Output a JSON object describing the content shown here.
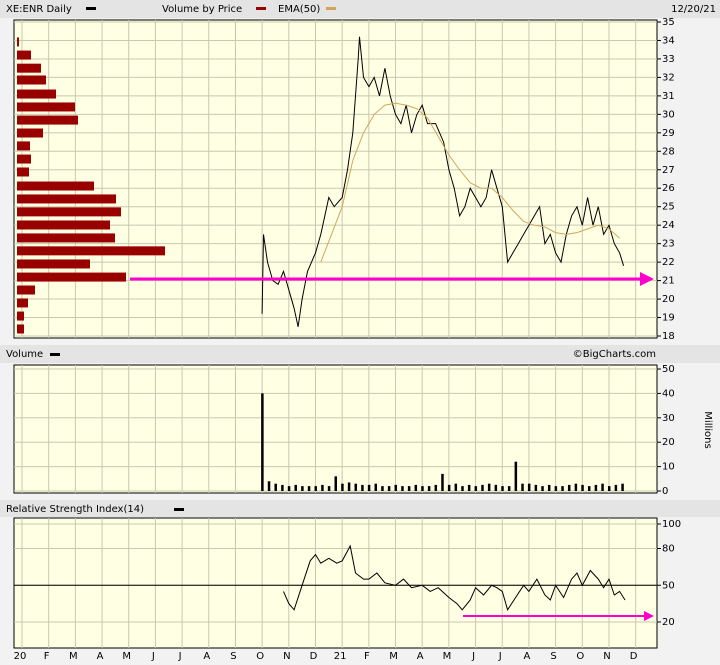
{
  "chart_data": [
    {
      "type": "line",
      "title": "XE:ENR Daily",
      "date": "12/20/21",
      "ylim": [
        18,
        35
      ],
      "yticks": [
        18,
        19,
        20,
        21,
        22,
        23,
        24,
        25,
        26,
        27,
        28,
        29,
        30,
        31,
        32,
        33,
        34,
        35
      ],
      "grid": true,
      "volume_by_price": {
        "name": "Volume by Price",
        "color": "#990000",
        "levels": [
          33.92,
          33.21,
          32.5,
          31.86,
          31.1,
          30.4,
          29.69,
          28.99,
          28.29,
          27.58,
          26.88,
          26.12,
          25.42,
          24.72,
          24.01,
          23.31,
          22.61,
          21.9,
          21.19,
          20.49,
          19.79,
          19.08,
          18.38
        ],
        "values": [
          2,
          14,
          24,
          29,
          39,
          58,
          61,
          26,
          13,
          14,
          12,
          77,
          99,
          104,
          93,
          98,
          148,
          73,
          109,
          18,
          11,
          7,
          7
        ]
      },
      "series": [
        {
          "name": "XE:ENR Daily",
          "color": "#000000",
          "x": [
            9.0,
            9.05,
            9.2,
            9.4,
            9.6,
            9.8,
            10.0,
            10.2,
            10.35,
            10.5,
            10.7,
            11.0,
            11.2,
            11.5,
            11.7,
            12.0,
            12.2,
            12.4,
            12.5,
            12.6,
            12.65,
            12.8,
            13.0,
            13.2,
            13.4,
            13.6,
            13.8,
            14.0,
            14.2,
            14.4,
            14.6,
            14.8,
            15.0,
            15.2,
            15.5,
            15.8,
            16.0,
            16.2,
            16.4,
            16.6,
            16.8,
            17.0,
            17.2,
            17.4,
            17.6,
            17.8,
            18.0,
            18.2,
            18.4,
            18.6,
            18.8,
            19.0,
            19.2,
            19.4,
            19.6,
            19.8,
            20.0,
            20.2,
            20.4,
            20.6,
            20.8,
            21.0,
            21.2,
            21.4,
            21.6,
            21.8,
            22.0,
            22.2,
            22.4,
            22.55
          ],
          "values": [
            19.2,
            23.5,
            22,
            21,
            20.8,
            21.5,
            20.5,
            19.5,
            18.5,
            20,
            21.5,
            22.5,
            23.5,
            25.5,
            25,
            25.5,
            27,
            29,
            31,
            33,
            34.2,
            32,
            31.5,
            32,
            31,
            32.5,
            31,
            30,
            29.5,
            30.5,
            29,
            30,
            30.5,
            29.5,
            29.5,
            28.5,
            27,
            26,
            24.5,
            25,
            26,
            25.5,
            25,
            25.5,
            27,
            26,
            25,
            22,
            22.5,
            23,
            23.5,
            24,
            24.5,
            25,
            23,
            23.5,
            22.5,
            22,
            23.5,
            24.5,
            25,
            24,
            25.5,
            24,
            25,
            23.5,
            24,
            23,
            22.5,
            21.8
          ]
        },
        {
          "name": "EMA(50)",
          "color": "#d2a65a",
          "x": [
            11.2,
            11.6,
            12.0,
            12.4,
            12.8,
            13.2,
            13.6,
            14.0,
            14.4,
            14.8,
            15.2,
            15.6,
            16.0,
            16.4,
            16.8,
            17.2,
            17.6,
            18.0,
            18.4,
            18.8,
            19.2,
            19.6,
            20.0,
            20.4,
            20.8,
            21.2,
            21.6,
            22.0,
            22.4
          ],
          "values": [
            22,
            23.5,
            25,
            27.5,
            29,
            30,
            30.5,
            30.6,
            30.5,
            30.3,
            29.8,
            28.8,
            27.8,
            27,
            26.3,
            26,
            26,
            25.5,
            24.8,
            24.2,
            24,
            23.9,
            23.6,
            23.5,
            23.6,
            23.8,
            24,
            23.8,
            23.3
          ]
        }
      ]
    },
    {
      "type": "bar",
      "title": "Volume",
      "source": "©BigCharts.com",
      "y_label": "Millions",
      "color": "#000000",
      "ylim": [
        0,
        50
      ],
      "yticks": [
        0,
        10,
        20,
        30,
        40,
        50
      ],
      "grid": true,
      "x": [
        9.0,
        9.25,
        9.5,
        9.75,
        10.0,
        10.25,
        10.5,
        10.75,
        11.0,
        11.25,
        11.5,
        11.75,
        12.0,
        12.25,
        12.5,
        12.75,
        13.0,
        13.25,
        13.5,
        13.75,
        14.0,
        14.25,
        14.5,
        14.75,
        15.0,
        15.25,
        15.5,
        15.75,
        16.0,
        16.25,
        16.5,
        16.75,
        17.0,
        17.25,
        17.5,
        17.75,
        18.0,
        18.25,
        18.5,
        18.75,
        19.0,
        19.25,
        19.5,
        19.75,
        20.0,
        20.25,
        20.5,
        20.75,
        21.0,
        21.25,
        21.5,
        21.75,
        22.0,
        22.25,
        22.5
      ],
      "values": [
        40,
        4,
        3,
        2.5,
        2,
        2.5,
        2,
        2,
        2,
        2.5,
        2,
        6,
        3,
        3.5,
        3,
        2.5,
        2.5,
        3,
        2,
        2,
        2.5,
        2,
        2,
        2.5,
        2,
        2,
        2.5,
        7,
        2.5,
        3,
        2,
        2.5,
        2,
        2.5,
        3,
        2.5,
        2,
        2,
        12,
        3,
        3,
        2.5,
        2,
        2.5,
        2,
        2,
        2.5,
        3,
        2.5,
        2,
        2.5,
        3,
        2,
        2.5,
        3
      ]
    },
    {
      "type": "line",
      "title": "Relative Strength Index(14)",
      "midline": 50,
      "ylim": [
        20,
        100
      ],
      "yticks": [
        20,
        50,
        80,
        100
      ],
      "grid": true,
      "xlim": [
        -0.3,
        23.8
      ],
      "xticks": [
        {
          "value": 0,
          "label": "20"
        },
        {
          "value": 1,
          "label": "F"
        },
        {
          "value": 2,
          "label": "M"
        },
        {
          "value": 3,
          "label": "A"
        },
        {
          "value": 4,
          "label": "M"
        },
        {
          "value": 5,
          "label": "J"
        },
        {
          "value": 6,
          "label": "J"
        },
        {
          "value": 7,
          "label": "A"
        },
        {
          "value": 8,
          "label": "S"
        },
        {
          "value": 9,
          "label": "O"
        },
        {
          "value": 10,
          "label": "N"
        },
        {
          "value": 11,
          "label": "D"
        },
        {
          "value": 12,
          "label": "21"
        },
        {
          "value": 13,
          "label": "F"
        },
        {
          "value": 14,
          "label": "M"
        },
        {
          "value": 15,
          "label": "A"
        },
        {
          "value": 16,
          "label": "M"
        },
        {
          "value": 17,
          "label": "J"
        },
        {
          "value": 18,
          "label": "J"
        },
        {
          "value": 19,
          "label": "A"
        },
        {
          "value": 20,
          "label": "S"
        },
        {
          "value": 21,
          "label": "O"
        },
        {
          "value": 22,
          "label": "N"
        },
        {
          "value": 23,
          "label": "D"
        }
      ],
      "series": [
        {
          "color": "#000000",
          "x": [
            9.8,
            10.0,
            10.2,
            10.5,
            10.8,
            11.0,
            11.2,
            11.5,
            11.8,
            12.0,
            12.2,
            12.3,
            12.5,
            12.8,
            13.0,
            13.3,
            13.6,
            14.0,
            14.3,
            14.6,
            15.0,
            15.3,
            15.6,
            16.0,
            16.3,
            16.5,
            16.8,
            17.0,
            17.3,
            17.6,
            17.8,
            18.0,
            18.2,
            18.5,
            18.8,
            19.0,
            19.3,
            19.6,
            19.8,
            20.0,
            20.3,
            20.6,
            20.8,
            21.0,
            21.3,
            21.6,
            21.8,
            22.0,
            22.2,
            22.4,
            22.6
          ],
          "values": [
            45,
            35,
            30,
            50,
            70,
            75,
            68,
            72,
            68,
            70,
            78,
            82,
            60,
            55,
            55,
            60,
            52,
            50,
            55,
            48,
            50,
            45,
            48,
            40,
            35,
            30,
            38,
            48,
            42,
            50,
            48,
            45,
            30,
            40,
            50,
            45,
            55,
            42,
            38,
            50,
            40,
            55,
            60,
            50,
            62,
            55,
            48,
            55,
            42,
            45,
            38
          ]
        }
      ]
    }
  ]
}
